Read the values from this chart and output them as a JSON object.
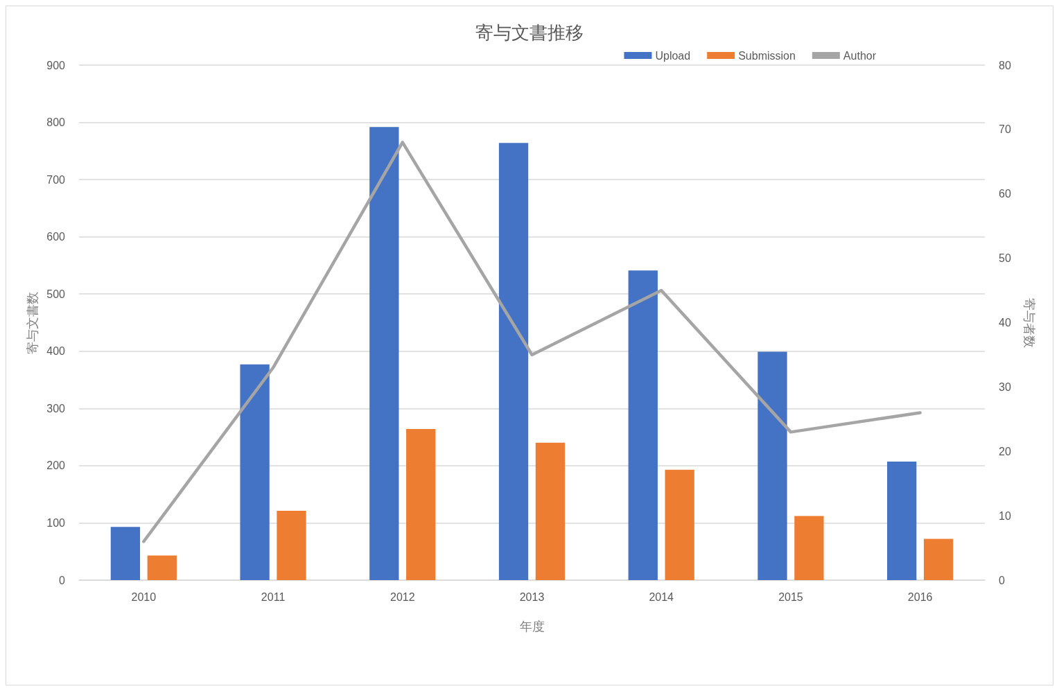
{
  "chart_data": {
    "type": "bar",
    "title": "寄与文書推移",
    "xlabel": "年度",
    "ylabel": "寄与文書数",
    "y2label": "寄与者数",
    "categories": [
      "2010",
      "2011",
      "2012",
      "2013",
      "2014",
      "2015",
      "2016"
    ],
    "series": [
      {
        "name": "Upload",
        "color": "#4472c4",
        "values": [
          93,
          377,
          792,
          764,
          541,
          399,
          207
        ]
      },
      {
        "name": "Submission",
        "color": "#ed7d31",
        "values": [
          43,
          121,
          264,
          240,
          193,
          112,
          72
        ]
      },
      {
        "name": "Author",
        "type": "line",
        "axis": "y2",
        "color": "#a5a5a5",
        "values": [
          6,
          33,
          68,
          35,
          45,
          23,
          26
        ],
        "marker": "none",
        "line_style": "solid"
      }
    ],
    "ylim": [
      0,
      900
    ],
    "yticks": [
      0,
      100,
      200,
      300,
      400,
      500,
      600,
      700,
      800,
      900
    ],
    "y2lim": [
      0,
      80
    ],
    "y2ticks": [
      0,
      10,
      20,
      30,
      40,
      50,
      60,
      70,
      80
    ],
    "grid": "y",
    "legend": "top right"
  }
}
